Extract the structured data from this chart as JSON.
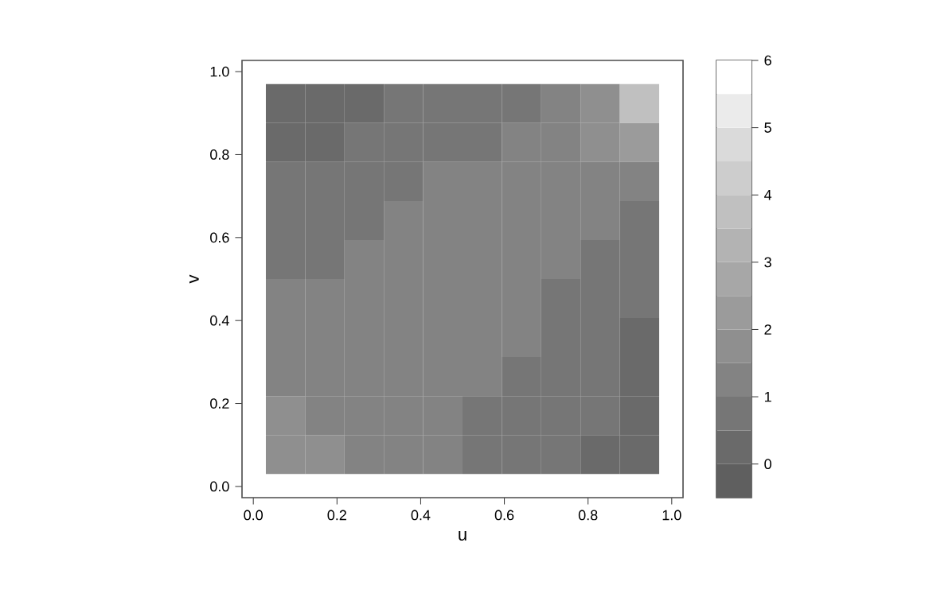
{
  "chart_data": {
    "type": "heatmap",
    "xlabel": "u",
    "ylabel": "v",
    "x": [
      0.077,
      0.171,
      0.265,
      0.359,
      0.453,
      0.547,
      0.641,
      0.735,
      0.829,
      0.923
    ],
    "y": [
      0.923,
      0.829,
      0.735,
      0.641,
      0.547,
      0.453,
      0.359,
      0.265,
      0.171,
      0.077
    ],
    "cells": [
      [
        0.3,
        0.3,
        0.4,
        0.55,
        0.7,
        0.8,
        0.95,
        1.1,
        1.5,
        3.5
      ],
      [
        0.45,
        0.48,
        0.6,
        0.7,
        0.85,
        0.98,
        1.1,
        1.2,
        1.6,
        2.2
      ],
      [
        0.52,
        0.6,
        0.7,
        0.9,
        1.0,
        1.1,
        1.2,
        1.25,
        1.4,
        1.05
      ],
      [
        0.6,
        0.75,
        0.9,
        1.05,
        1.1,
        1.2,
        1.2,
        1.2,
        1.05,
        0.9
      ],
      [
        0.85,
        0.95,
        1.05,
        1.15,
        1.2,
        1.25,
        1.2,
        1.1,
        0.95,
        0.6
      ],
      [
        1.0,
        1.1,
        1.2,
        1.25,
        1.25,
        1.2,
        1.1,
        0.95,
        0.8,
        0.5
      ],
      [
        1.15,
        1.2,
        1.25,
        1.25,
        1.2,
        1.1,
        1.0,
        0.8,
        0.65,
        0.45
      ],
      [
        1.3,
        1.3,
        1.25,
        1.2,
        1.15,
        1.05,
        0.9,
        0.75,
        0.6,
        0.4
      ],
      [
        1.75,
        1.45,
        1.3,
        1.2,
        1.05,
        0.95,
        0.8,
        0.65,
        0.5,
        0.35
      ],
      [
        1.95,
        1.65,
        1.35,
        1.2,
        1.0,
        0.85,
        0.7,
        0.55,
        0.45,
        0.3
      ]
    ],
    "xlim": [
      -0.027,
      1.027
    ],
    "ylim": [
      -0.027,
      1.027
    ],
    "xticks": [
      {
        "value": 0,
        "label": "0.0"
      },
      {
        "value": 0.2,
        "label": "0.2"
      },
      {
        "value": 0.4,
        "label": "0.4"
      },
      {
        "value": 0.6,
        "label": "0.6"
      },
      {
        "value": 0.8,
        "label": "0.8"
      },
      {
        "value": 1,
        "label": "1.0"
      }
    ],
    "yticks": [
      {
        "value": 0,
        "label": "0.0"
      },
      {
        "value": 0.2,
        "label": "0.2"
      },
      {
        "value": 0.4,
        "label": "0.4"
      },
      {
        "value": 0.6,
        "label": "0.6"
      },
      {
        "value": 0.8,
        "label": "0.8"
      },
      {
        "value": 1,
        "label": "1.0"
      }
    ],
    "clim": [
      -0.5,
      6
    ],
    "cticks": [
      0,
      1,
      2,
      3,
      4,
      5,
      6
    ],
    "colors": [
      "#5f5f5f",
      "#6a6a6a",
      "#767676",
      "#838383",
      "#8f8f8f",
      "#9b9b9b",
      "#a7a7a7",
      "#b3b3b3",
      "#c0c0c0",
      "#cdcdcd",
      "#dadada",
      "#ebebeb",
      "#ffffff"
    ]
  }
}
